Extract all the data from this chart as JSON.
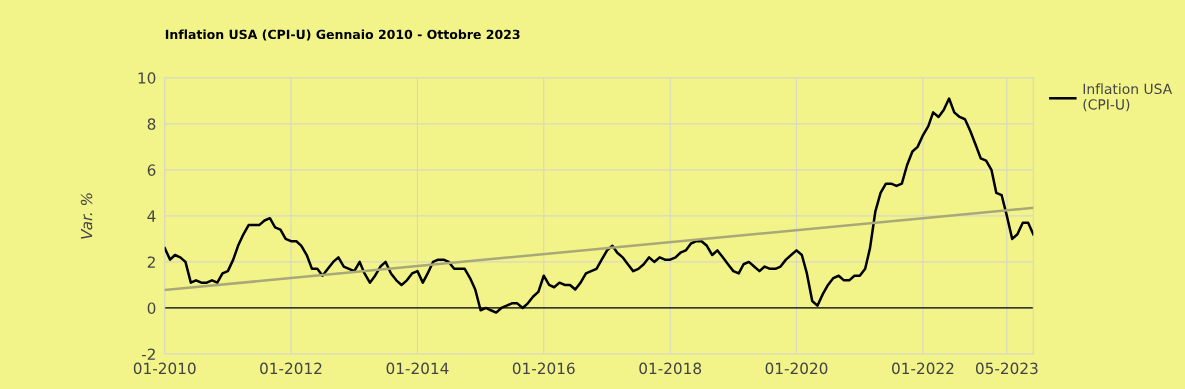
{
  "chart_data": {
    "type": "line",
    "title": "Inflation USA (CPI-U) Gennaio 2010 - Ottobre 2023",
    "ylabel": "Var. %",
    "xlim": [
      "2010-01",
      "2023-10"
    ],
    "ylim": [
      -2,
      10
    ],
    "yticks": [
      -2,
      0,
      2,
      4,
      6,
      8,
      10
    ],
    "xticks": [
      {
        "value": "2010-01",
        "label": "01-2010"
      },
      {
        "value": "2012-01",
        "label": "01-2012"
      },
      {
        "value": "2014-01",
        "label": "01-2014"
      },
      {
        "value": "2016-01",
        "label": "01-2016"
      },
      {
        "value": "2018-01",
        "label": "01-2018"
      },
      {
        "value": "2020-01",
        "label": "01-2020"
      },
      {
        "value": "2022-01",
        "label": "01-2022"
      },
      {
        "value": "2023-05",
        "label": "05-2023"
      }
    ],
    "grid": true,
    "legend": "top right",
    "line_style": "solid",
    "marker": "none",
    "ref_lines": [
      {
        "axis": "y",
        "value": 0,
        "label": null,
        "color": "#000000"
      }
    ],
    "series": [
      {
        "name": "Inflation USA (CPI-U)",
        "color": "#000000",
        "x": [
          "2010-01",
          "2010-02",
          "2010-03",
          "2010-04",
          "2010-05",
          "2010-06",
          "2010-07",
          "2010-08",
          "2010-09",
          "2010-10",
          "2010-11",
          "2010-12",
          "2011-01",
          "2011-02",
          "2011-03",
          "2011-04",
          "2011-05",
          "2011-06",
          "2011-07",
          "2011-08",
          "2011-09",
          "2011-10",
          "2011-11",
          "2011-12",
          "2012-01",
          "2012-02",
          "2012-03",
          "2012-04",
          "2012-05",
          "2012-06",
          "2012-07",
          "2012-08",
          "2012-09",
          "2012-10",
          "2012-11",
          "2012-12",
          "2013-01",
          "2013-02",
          "2013-03",
          "2013-04",
          "2013-05",
          "2013-06",
          "2013-07",
          "2013-08",
          "2013-09",
          "2013-10",
          "2013-11",
          "2013-12",
          "2014-01",
          "2014-02",
          "2014-03",
          "2014-04",
          "2014-05",
          "2014-06",
          "2014-07",
          "2014-08",
          "2014-09",
          "2014-10",
          "2014-11",
          "2014-12",
          "2015-01",
          "2015-02",
          "2015-03",
          "2015-04",
          "2015-05",
          "2015-06",
          "2015-07",
          "2015-08",
          "2015-09",
          "2015-10",
          "2015-11",
          "2015-12",
          "2016-01",
          "2016-02",
          "2016-03",
          "2016-04",
          "2016-05",
          "2016-06",
          "2016-07",
          "2016-08",
          "2016-09",
          "2016-10",
          "2016-11",
          "2016-12",
          "2017-01",
          "2017-02",
          "2017-03",
          "2017-04",
          "2017-05",
          "2017-06",
          "2017-07",
          "2017-08",
          "2017-09",
          "2017-10",
          "2017-11",
          "2017-12",
          "2018-01",
          "2018-02",
          "2018-03",
          "2018-04",
          "2018-05",
          "2018-06",
          "2018-07",
          "2018-08",
          "2018-09",
          "2018-10",
          "2018-11",
          "2018-12",
          "2019-01",
          "2019-02",
          "2019-03",
          "2019-04",
          "2019-05",
          "2019-06",
          "2019-07",
          "2019-08",
          "2019-09",
          "2019-10",
          "2019-11",
          "2019-12",
          "2020-01",
          "2020-02",
          "2020-03",
          "2020-04",
          "2020-05",
          "2020-06",
          "2020-07",
          "2020-08",
          "2020-09",
          "2020-10",
          "2020-11",
          "2020-12",
          "2021-01",
          "2021-02",
          "2021-03",
          "2021-04",
          "2021-05",
          "2021-06",
          "2021-07",
          "2021-08",
          "2021-09",
          "2021-10",
          "2021-11",
          "2021-12",
          "2022-01",
          "2022-02",
          "2022-03",
          "2022-04",
          "2022-05",
          "2022-06",
          "2022-07",
          "2022-08",
          "2022-09",
          "2022-10",
          "2022-11",
          "2022-12",
          "2023-01",
          "2023-02",
          "2023-03",
          "2023-04",
          "2023-05",
          "2023-06",
          "2023-07",
          "2023-08",
          "2023-09",
          "2023-10"
        ],
        "values": [
          2.6,
          2.1,
          2.3,
          2.2,
          2.0,
          1.1,
          1.2,
          1.1,
          1.1,
          1.2,
          1.1,
          1.5,
          1.6,
          2.1,
          2.7,
          3.2,
          3.6,
          3.6,
          3.6,
          3.8,
          3.9,
          3.5,
          3.4,
          3.0,
          2.9,
          2.9,
          2.7,
          2.3,
          1.7,
          1.7,
          1.4,
          1.7,
          2.0,
          2.2,
          1.8,
          1.7,
          1.6,
          2.0,
          1.5,
          1.1,
          1.4,
          1.8,
          2.0,
          1.5,
          1.2,
          1.0,
          1.2,
          1.5,
          1.6,
          1.1,
          1.5,
          2.0,
          2.1,
          2.1,
          2.0,
          1.7,
          1.7,
          1.7,
          1.3,
          0.8,
          -0.1,
          0.0,
          -0.1,
          -0.2,
          0.0,
          0.1,
          0.2,
          0.2,
          0.0,
          0.2,
          0.5,
          0.7,
          1.4,
          1.0,
          0.9,
          1.1,
          1.0,
          1.0,
          0.8,
          1.1,
          1.5,
          1.6,
          1.7,
          2.1,
          2.5,
          2.7,
          2.4,
          2.2,
          1.9,
          1.6,
          1.7,
          1.9,
          2.2,
          2.0,
          2.2,
          2.1,
          2.1,
          2.2,
          2.4,
          2.5,
          2.8,
          2.9,
          2.9,
          2.7,
          2.3,
          2.5,
          2.2,
          1.9,
          1.6,
          1.5,
          1.9,
          2.0,
          1.8,
          1.6,
          1.8,
          1.7,
          1.7,
          1.8,
          2.1,
          2.3,
          2.5,
          2.3,
          1.5,
          0.3,
          0.1,
          0.6,
          1.0,
          1.3,
          1.4,
          1.2,
          1.2,
          1.4,
          1.4,
          1.7,
          2.6,
          4.2,
          5.0,
          5.4,
          5.4,
          5.3,
          5.4,
          6.2,
          6.8,
          7.0,
          7.5,
          7.9,
          8.5,
          8.3,
          8.6,
          9.1,
          8.5,
          8.3,
          8.2,
          7.7,
          7.1,
          6.5,
          6.4,
          6.0,
          5.0,
          4.9,
          4.0,
          3.0,
          3.2,
          3.7,
          3.7,
          3.2
        ]
      },
      {
        "type": "line",
        "color": "#a8a878",
        "x": [
          "2010-01",
          "2023-10"
        ],
        "values": [
          0.78,
          4.35
        ]
      }
    ]
  }
}
